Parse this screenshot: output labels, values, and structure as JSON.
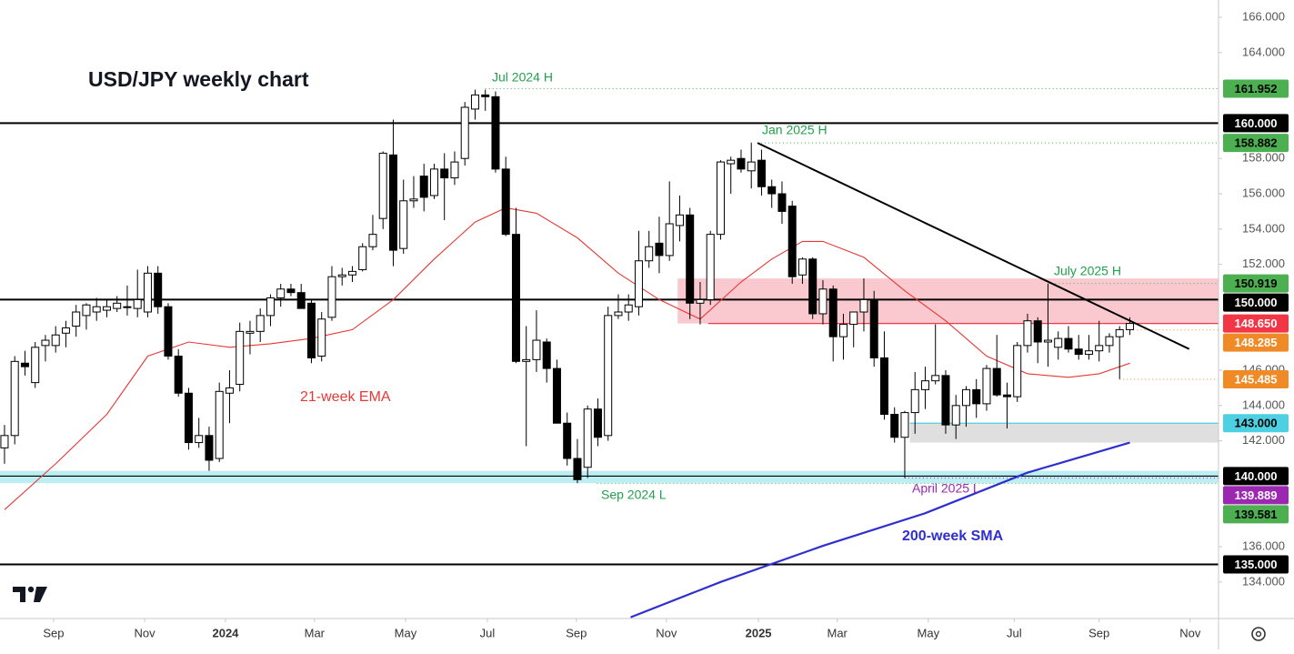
{
  "chart_data": {
    "type": "candlestick",
    "title": "USD/JPY weekly chart",
    "ylim": [
      131.93,
      166.98
    ],
    "xlim": [
      -0.44,
      118.67
    ],
    "yticks": [
      {
        "value": 134,
        "label": "134.000"
      },
      {
        "value": 136,
        "label": "136.000"
      },
      {
        "value": 142,
        "label": "142.000"
      },
      {
        "value": 144,
        "label": "144.000"
      },
      {
        "value": 146,
        "label": "146.000"
      },
      {
        "value": 152,
        "label": "152.000"
      },
      {
        "value": 154,
        "label": "154.000"
      },
      {
        "value": 156,
        "label": "156.000"
      },
      {
        "value": 158,
        "label": "158.000"
      },
      {
        "value": 164,
        "label": "164.000"
      },
      {
        "value": 166,
        "label": "166.000"
      }
    ],
    "xticks": [
      {
        "value": 4.8,
        "label": "Sep"
      },
      {
        "value": 13.7,
        "label": "Nov"
      },
      {
        "value": 21.6,
        "label": "2024"
      },
      {
        "value": 30.3,
        "label": "Mar"
      },
      {
        "value": 39.2,
        "label": "May"
      },
      {
        "value": 47.2,
        "label": "Jul"
      },
      {
        "value": 55.9,
        "label": "Sep"
      },
      {
        "value": 64.7,
        "label": "Nov"
      },
      {
        "value": 73.7,
        "label": "2025"
      },
      {
        "value": 81.4,
        "label": "Mar"
      },
      {
        "value": 90.3,
        "label": "May"
      },
      {
        "value": 98.7,
        "label": "Jul"
      },
      {
        "value": 107.0,
        "label": "Sep"
      },
      {
        "value": 115.9,
        "label": "Nov"
      }
    ],
    "up_color": "#ffffff",
    "down_color": "#000000",
    "ohlc": [
      [
        141.6,
        142.9,
        140.7,
        142.3
      ],
      [
        142.3,
        146.8,
        141.8,
        146.5
      ],
      [
        146.4,
        147.1,
        145.7,
        146.2
      ],
      [
        145.3,
        147.6,
        145.0,
        147.3
      ],
      [
        147.4,
        148.0,
        146.5,
        147.7
      ],
      [
        147.4,
        148.5,
        147.0,
        148.0
      ],
      [
        148.1,
        148.8,
        147.3,
        148.4
      ],
      [
        148.5,
        149.7,
        147.9,
        149.3
      ],
      [
        149.1,
        149.8,
        148.3,
        149.7
      ],
      [
        149.3,
        150.1,
        148.8,
        149.6
      ],
      [
        149.4,
        150.0,
        149.0,
        149.6
      ],
      [
        149.5,
        150.2,
        149.3,
        149.8
      ],
      [
        149.6,
        150.8,
        149.1,
        149.6
      ],
      [
        149.5,
        151.7,
        149.0,
        150.0
      ],
      [
        149.3,
        151.9,
        149.0,
        151.5
      ],
      [
        151.5,
        151.9,
        149.2,
        149.6
      ],
      [
        149.6,
        149.8,
        146.6,
        146.8
      ],
      [
        146.8,
        147.2,
        144.5,
        144.7
      ],
      [
        144.7,
        145.0,
        141.5,
        141.9
      ],
      [
        141.9,
        143.3,
        141.6,
        142.3
      ],
      [
        142.3,
        142.8,
        140.3,
        140.9
      ],
      [
        141.0,
        145.3,
        140.8,
        144.8
      ],
      [
        144.7,
        146.0,
        143.0,
        145.0
      ],
      [
        145.2,
        148.7,
        144.8,
        148.2
      ],
      [
        148.1,
        148.8,
        146.9,
        148.2
      ],
      [
        148.2,
        149.5,
        147.6,
        149.1
      ],
      [
        149.1,
        150.3,
        148.5,
        150.1
      ],
      [
        150.1,
        150.9,
        149.6,
        150.6
      ],
      [
        150.6,
        150.9,
        150.2,
        150.4
      ],
      [
        150.4,
        150.9,
        149.5,
        149.5
      ],
      [
        149.8,
        150.0,
        146.4,
        146.7
      ],
      [
        146.8,
        149.3,
        146.5,
        148.9
      ],
      [
        149.0,
        151.9,
        148.8,
        151.3
      ],
      [
        151.3,
        151.8,
        150.8,
        151.4
      ],
      [
        151.4,
        151.9,
        151.0,
        151.6
      ],
      [
        151.7,
        153.2,
        151.6,
        153.0
      ],
      [
        153.0,
        154.8,
        152.8,
        153.7
      ],
      [
        154.6,
        158.4,
        154.0,
        158.3
      ],
      [
        158.2,
        160.2,
        151.9,
        152.8
      ],
      [
        152.9,
        156.8,
        152.6,
        155.6
      ],
      [
        155.6,
        157.0,
        155.2,
        155.7
      ],
      [
        157.0,
        157.7,
        155.0,
        155.8
      ],
      [
        155.9,
        157.7,
        155.7,
        157.4
      ],
      [
        157.4,
        158.3,
        154.5,
        156.9
      ],
      [
        156.9,
        158.4,
        156.5,
        157.8
      ],
      [
        158.0,
        161.2,
        157.6,
        160.9
      ],
      [
        160.8,
        161.9,
        160.2,
        161.6
      ],
      [
        161.6,
        161.9,
        160.7,
        161.5
      ],
      [
        161.5,
        161.8,
        157.2,
        157.4
      ],
      [
        157.4,
        158.1,
        153.6,
        153.7
      ],
      [
        153.7,
        155.2,
        146.4,
        146.5
      ],
      [
        146.5,
        148.5,
        141.7,
        146.6
      ],
      [
        146.6,
        149.4,
        145.9,
        147.7
      ],
      [
        147.6,
        147.8,
        145.3,
        146.1
      ],
      [
        146.1,
        146.6,
        143.0,
        143.0
      ],
      [
        143.0,
        143.6,
        140.6,
        141.0
      ],
      [
        141.0,
        142.1,
        139.6,
        139.8
      ],
      [
        140.5,
        144.0,
        139.9,
        143.8
      ],
      [
        143.8,
        144.4,
        141.7,
        142.2
      ],
      [
        142.3,
        149.6,
        142.0,
        149.1
      ],
      [
        149.1,
        150.3,
        148.9,
        149.3
      ],
      [
        149.3,
        150.3,
        148.8,
        149.7
      ],
      [
        149.6,
        153.9,
        149.1,
        152.2
      ],
      [
        152.2,
        153.9,
        151.8,
        153.0
      ],
      [
        153.2,
        154.7,
        151.5,
        152.5
      ],
      [
        152.5,
        156.7,
        152.2,
        154.3
      ],
      [
        154.2,
        155.9,
        153.3,
        154.8
      ],
      [
        154.8,
        155.2,
        148.9,
        149.8
      ],
      [
        149.8,
        151.0,
        148.6,
        150.0
      ],
      [
        150.0,
        153.9,
        149.7,
        153.7
      ],
      [
        153.7,
        157.9,
        153.4,
        157.8
      ],
      [
        157.7,
        158.1,
        156.0,
        157.9
      ],
      [
        158.0,
        158.5,
        157.2,
        157.4
      ],
      [
        157.3,
        158.9,
        156.3,
        157.8
      ],
      [
        157.9,
        158.5,
        155.9,
        156.4
      ],
      [
        156.4,
        156.8,
        155.2,
        156.0
      ],
      [
        156.0,
        156.7,
        154.3,
        155.0
      ],
      [
        155.3,
        155.6,
        150.9,
        151.3
      ],
      [
        151.4,
        152.4,
        150.9,
        152.3
      ],
      [
        152.3,
        152.4,
        148.9,
        149.2
      ],
      [
        149.2,
        151.1,
        148.6,
        150.6
      ],
      [
        150.6,
        150.8,
        146.5,
        147.9
      ],
      [
        147.9,
        149.2,
        146.6,
        148.6
      ],
      [
        148.6,
        149.3,
        147.3,
        149.3
      ],
      [
        149.3,
        151.2,
        148.2,
        150.0
      ],
      [
        150.0,
        150.5,
        146.2,
        146.7
      ],
      [
        146.7,
        148.2,
        143.2,
        143.5
      ],
      [
        143.5,
        143.9,
        141.9,
        142.2
      ],
      [
        142.2,
        143.7,
        139.9,
        143.6
      ],
      [
        143.6,
        145.9,
        142.4,
        144.9
      ],
      [
        144.9,
        146.2,
        143.8,
        145.4
      ],
      [
        145.4,
        148.6,
        145.2,
        145.7
      ],
      [
        145.7,
        146.0,
        142.4,
        142.9
      ],
      [
        142.9,
        144.6,
        142.1,
        144.0
      ],
      [
        144.0,
        145.1,
        142.8,
        144.9
      ],
      [
        144.9,
        145.5,
        143.3,
        144.1
      ],
      [
        144.1,
        146.3,
        143.7,
        146.1
      ],
      [
        146.1,
        148.0,
        144.5,
        144.6
      ],
      [
        144.6,
        145.3,
        142.7,
        144.5
      ],
      [
        144.5,
        147.6,
        144.2,
        147.4
      ],
      [
        147.4,
        149.2,
        147.0,
        148.8
      ],
      [
        148.8,
        149.0,
        146.4,
        147.6
      ],
      [
        147.6,
        150.9,
        146.2,
        147.7
      ],
      [
        147.3,
        148.2,
        146.6,
        147.8
      ],
      [
        147.8,
        148.5,
        147.0,
        147.2
      ],
      [
        147.2,
        148.0,
        146.6,
        146.9
      ],
      [
        146.9,
        148.0,
        146.6,
        147.1
      ],
      [
        147.1,
        148.8,
        146.5,
        147.4
      ],
      [
        147.4,
        148.1,
        147.0,
        147.9
      ],
      [
        147.9,
        148.5,
        145.5,
        148.3
      ],
      [
        148.3,
        149.0,
        148.0,
        148.65
      ]
    ],
    "series": [
      {
        "name": "21-week EMA",
        "color": "#e53935",
        "x": [
          0,
          5,
          10,
          14,
          18,
          22,
          26,
          30,
          34,
          38,
          42,
          46,
          49,
          52,
          56,
          60,
          64,
          68,
          72,
          75,
          78,
          80,
          84,
          88,
          92,
          96,
          100,
          104,
          107,
          110
        ],
        "values": [
          138.1,
          140.7,
          143.5,
          146.8,
          147.6,
          147.3,
          147.5,
          147.8,
          148.3,
          150.0,
          152.3,
          154.4,
          155.2,
          154.9,
          153.5,
          151.5,
          150.0,
          148.9,
          151.0,
          152.3,
          153.3,
          153.3,
          152.4,
          150.5,
          148.8,
          146.8,
          145.8,
          145.6,
          145.8,
          146.4
        ]
      },
      {
        "name": "200-week SMA",
        "color": "#2f2fcf",
        "x": [
          61.2,
          70,
          80,
          90,
          100,
          110
        ],
        "values": [
          132.0,
          134.0,
          136.05,
          137.9,
          140.2,
          141.9
        ]
      }
    ],
    "trendline": {
      "x": [
        73.6,
        115.8
      ],
      "values": [
        158.882,
        147.2
      ],
      "color": "#000000"
    },
    "zones": [
      {
        "from": 148.65,
        "to": 151.2,
        "start": 65.8,
        "color": "#f8c0c7"
      },
      {
        "from": 141.9,
        "to": 143.0,
        "start": 88.5,
        "color": "#d9d9d9"
      },
      {
        "from": 139.6,
        "to": 140.3,
        "start": -0.44,
        "color": "#b2ebf2"
      }
    ],
    "levels": [
      {
        "value": 161.952,
        "color": "#4caf50",
        "text_color": "#000000",
        "style": "dotted",
        "start": 47
      },
      {
        "value": 160,
        "label": "160.000",
        "color": "#000000",
        "text_color": "#ffffff",
        "style": "solid",
        "start": -0.44
      },
      {
        "value": 158.882,
        "color": "#4caf50",
        "text_color": "#000000",
        "style": "dotted",
        "start": 73.6
      },
      {
        "value": 150.919,
        "color": "#4caf50",
        "text_color": "#000000",
        "style": "dotted",
        "start": 102
      },
      {
        "value": 150,
        "label": "150.000",
        "color": "#000000",
        "text_color": "#ffffff",
        "style": "solid",
        "start": -0.44
      },
      {
        "value": 148.65,
        "label": "148.650",
        "color": "#f23645",
        "text_color": "#ffffff",
        "style": "thin",
        "start": 68.8
      },
      {
        "value": 148.285,
        "color": "#ef8a26",
        "text_color": "#ffffff",
        "style": "dotted",
        "start": 110
      },
      {
        "value": 145.485,
        "color": "#ef8a26",
        "text_color": "#ffffff",
        "style": "dotted",
        "start": 109
      },
      {
        "value": 143,
        "label": "143.000",
        "color": "#4dd0e1",
        "text_color": "#000000",
        "style": "thin",
        "start": 88.5
      },
      {
        "value": 140,
        "label": "140.000",
        "color": "#000000",
        "text_color": "#ffffff",
        "style": "thin",
        "start": -0.44
      },
      {
        "value": 139.889,
        "color": "#9c27b0",
        "text_color": "#ffffff",
        "style": "dotted",
        "start": 88
      },
      {
        "value": 139.581,
        "color": "#4caf50",
        "text_color": "#000000",
        "style": "dotted",
        "start": 57.9
      },
      {
        "value": 135,
        "label": "135.000",
        "color": "#000000",
        "text_color": "#ffffff",
        "style": "solid",
        "start": -0.44
      }
    ],
    "annotations": [
      {
        "text": "Jul 2024 H",
        "color": "#22a04b"
      },
      {
        "text": "Jan 2025 H",
        "color": "#22a04b"
      },
      {
        "text": "July 2025 H",
        "color": "#22a04b"
      },
      {
        "text": "Sep 2024 L",
        "color": "#22a04b"
      },
      {
        "text": "April 2025 L",
        "color": "#9c27b0"
      }
    ]
  }
}
